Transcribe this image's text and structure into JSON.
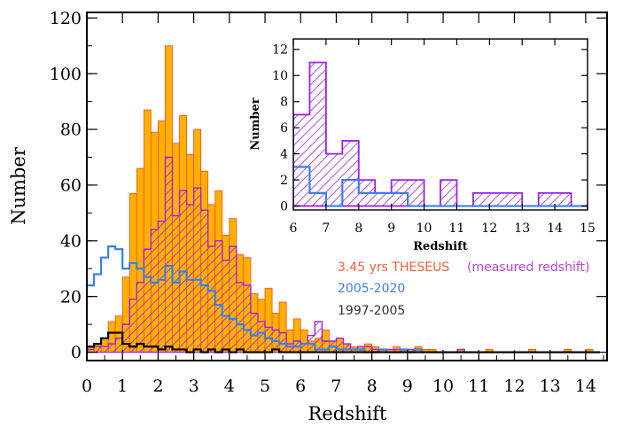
{
  "chart_data": [
    {
      "type": "histogram",
      "bin_width": 0.2,
      "xlabel": "Redshift",
      "ylabel": "Number",
      "xlim": [
        0,
        14.6
      ],
      "ylim": [
        -3,
        122
      ],
      "xticks": [
        0,
        1,
        2,
        3,
        4,
        5,
        6,
        7,
        8,
        9,
        10,
        11,
        12,
        13,
        14
      ],
      "yticks": [
        0,
        20,
        40,
        60,
        80,
        100,
        120
      ],
      "series": [
        {
          "name": "3.45 yrs THESEUS",
          "style": "filled",
          "color": "#ffb000",
          "edge": "#ff4a2a",
          "bin_starts": [
            0.0,
            0.2,
            0.4,
            0.6,
            0.8,
            1.0,
            1.2,
            1.4,
            1.6,
            1.8,
            2.0,
            2.2,
            2.4,
            2.6,
            2.8,
            3.0,
            3.2,
            3.4,
            3.6,
            3.8,
            4.0,
            4.2,
            4.4,
            4.6,
            4.8,
            5.0,
            5.2,
            5.4,
            5.6,
            5.8,
            6.0,
            6.2,
            6.4,
            6.6,
            6.8,
            7.0,
            7.2,
            7.4,
            7.6,
            7.8,
            8.0,
            8.2,
            8.4,
            8.6,
            8.8,
            9.0,
            9.2,
            9.4,
            9.6,
            9.8,
            10.0,
            10.2,
            10.4,
            10.6,
            10.8,
            11.0,
            11.2,
            11.4,
            11.6,
            11.8,
            12.0,
            12.2,
            12.4,
            12.6,
            12.8,
            13.0,
            13.2,
            13.4,
            13.6,
            13.8,
            14.0,
            14.2
          ],
          "values": [
            2,
            3,
            5,
            11,
            13,
            27,
            57,
            66,
            87,
            79,
            83,
            110,
            75,
            85,
            71,
            80,
            65,
            53,
            58,
            42,
            48,
            35,
            34,
            21,
            19,
            23,
            14,
            18,
            8,
            12,
            8,
            4,
            5,
            8,
            4,
            5,
            3,
            2,
            2,
            3,
            2,
            1,
            1,
            2,
            1,
            1,
            2,
            1,
            1,
            0,
            0,
            0,
            1,
            0,
            0,
            0,
            1,
            0,
            0,
            0,
            0,
            0,
            1,
            0,
            0,
            0,
            0,
            1,
            0,
            0,
            1,
            0
          ]
        },
        {
          "name": "(measured redshift)",
          "style": "hatched",
          "color": "#a020f0",
          "bin_starts": [
            0.0,
            0.2,
            0.4,
            0.6,
            0.8,
            1.0,
            1.2,
            1.4,
            1.6,
            1.8,
            2.0,
            2.2,
            2.4,
            2.6,
            2.8,
            3.0,
            3.2,
            3.4,
            3.6,
            3.8,
            4.0,
            4.2,
            4.4,
            4.6,
            4.8,
            5.0,
            5.2,
            5.4,
            5.6,
            5.8,
            6.0,
            6.2,
            6.4,
            6.6,
            6.8,
            7.0,
            7.2,
            7.4,
            7.6,
            7.8,
            8.0,
            8.2,
            8.4,
            8.6,
            8.8,
            9.0,
            9.2,
            9.4,
            9.6,
            9.8,
            10.0,
            10.2,
            10.4,
            10.6,
            10.8,
            11.0,
            11.2,
            11.4,
            11.6,
            11.8,
            12.0,
            12.2,
            12.4,
            12.6,
            12.8,
            13.0,
            13.2,
            13.4,
            13.6,
            13.8,
            14.0,
            14.2
          ],
          "values": [
            1,
            2,
            2,
            3,
            5,
            10,
            19,
            25,
            37,
            44,
            47,
            70,
            49,
            58,
            53,
            59,
            51,
            38,
            40,
            33,
            38,
            25,
            24,
            14,
            11,
            9,
            8,
            7,
            3,
            4,
            3,
            6,
            11,
            4,
            4,
            5,
            3,
            1,
            2,
            2,
            1,
            1,
            1,
            1,
            1,
            1,
            0,
            0,
            0,
            0,
            0,
            0,
            1,
            0,
            0,
            0,
            0,
            0,
            0,
            0,
            0,
            0,
            0,
            0,
            0,
            0,
            0,
            0,
            0,
            0,
            0,
            0
          ]
        },
        {
          "name": "2005-2020",
          "style": "step",
          "color": "#3a7ff0",
          "bin_starts": [
            0.0,
            0.2,
            0.4,
            0.6,
            0.8,
            1.0,
            1.2,
            1.4,
            1.6,
            1.8,
            2.0,
            2.2,
            2.4,
            2.6,
            2.8,
            3.0,
            3.2,
            3.4,
            3.6,
            3.8,
            4.0,
            4.2,
            4.4,
            4.6,
            4.8,
            5.0,
            5.2,
            5.4,
            5.6,
            5.8,
            6.0,
            6.2,
            6.4,
            6.6,
            6.8,
            7.0,
            7.2,
            7.4,
            7.6,
            7.8,
            8.0,
            8.2,
            8.4,
            8.6,
            8.8,
            9.0,
            9.2,
            9.4,
            9.6,
            9.8,
            10.0,
            10.2,
            10.4,
            10.6,
            10.8,
            11.0,
            11.2,
            11.4,
            11.6,
            11.8,
            12.0,
            12.2,
            12.4,
            12.6,
            12.8,
            13.0,
            13.2,
            13.4,
            13.6,
            13.8,
            14.0,
            14.2
          ],
          "values": [
            24,
            28,
            34,
            38,
            37,
            30,
            32,
            30,
            27,
            25,
            26,
            31,
            25,
            29,
            26,
            26,
            24,
            22,
            17,
            13,
            12,
            10,
            8,
            6,
            7,
            5,
            4,
            3,
            2,
            2,
            3,
            3,
            1,
            1,
            2,
            1,
            1,
            1,
            1,
            0,
            0,
            1,
            0,
            0,
            1,
            0,
            1,
            0,
            0,
            0,
            0,
            0,
            0,
            0,
            0,
            0,
            0,
            0,
            0,
            0,
            0,
            0,
            0,
            0,
            0,
            0,
            0,
            0,
            0,
            0,
            0,
            0
          ]
        },
        {
          "name": "1997-2005",
          "style": "step",
          "color": "#000000",
          "bin_starts": [
            0.0,
            0.2,
            0.4,
            0.6,
            0.8,
            1.0,
            1.2,
            1.4,
            1.6,
            1.8,
            2.0,
            2.2,
            2.4,
            2.6,
            2.8,
            3.0,
            3.2,
            3.4,
            3.6,
            3.8,
            4.0,
            4.2,
            4.4,
            4.6,
            4.8,
            5.0,
            5.2,
            5.4,
            5.6,
            5.8,
            6.0,
            6.2,
            6.4,
            6.6,
            6.8,
            7.0,
            7.2,
            7.4,
            7.6,
            7.8,
            8.0,
            8.2,
            8.4,
            8.6,
            8.8,
            9.0,
            9.2,
            9.4,
            9.6,
            9.8,
            10.0,
            10.2,
            10.4,
            10.6,
            10.8,
            11.0,
            11.2,
            11.4,
            11.6,
            11.8,
            12.0,
            12.2,
            12.4,
            12.6,
            12.8,
            13.0,
            13.2,
            13.4,
            13.6,
            13.8,
            14.0,
            14.2
          ],
          "values": [
            2,
            3,
            5,
            7,
            7,
            3,
            2,
            3,
            2,
            2,
            1,
            2,
            1,
            1,
            0,
            1,
            0,
            1,
            0,
            1,
            0,
            1,
            0,
            0,
            0,
            0,
            1,
            0,
            0,
            0,
            0,
            0,
            0,
            0,
            0,
            0,
            0,
            0,
            0,
            0,
            0,
            0,
            0,
            0,
            0,
            0,
            0,
            0,
            0,
            0,
            0,
            0,
            0,
            0,
            0,
            0,
            0,
            0,
            0,
            0,
            0,
            0,
            0,
            0,
            0,
            0,
            0,
            0,
            0,
            0,
            0,
            0
          ]
        }
      ],
      "legend": [
        {
          "text": "3.45 yrs THESEUS",
          "color": "#ff5a3a"
        },
        {
          "text": "(measured redshift)",
          "color": "#c040e0"
        },
        {
          "text": "2005-2020",
          "color": "#3a7ff0"
        },
        {
          "text": "1997-2005",
          "color": "#333333"
        }
      ]
    },
    {
      "type": "histogram",
      "inset": true,
      "bin_width": 0.5,
      "xlabel": "Redshift",
      "ylabel": "Number",
      "xlim": [
        6,
        15
      ],
      "ylim": [
        -0.3,
        12.8
      ],
      "xticks": [
        6,
        7,
        8,
        9,
        10,
        11,
        12,
        13,
        14,
        15
      ],
      "yticks": [
        0,
        2,
        4,
        6,
        8,
        10,
        12
      ],
      "series": [
        {
          "name": "(measured redshift)",
          "style": "hatched",
          "color": "#a020f0",
          "bin_starts": [
            6.0,
            6.5,
            7.0,
            7.5,
            8.0,
            8.5,
            9.0,
            9.5,
            10.0,
            10.5,
            11.0,
            11.5,
            12.0,
            12.5,
            13.0,
            13.5,
            14.0,
            14.5
          ],
          "values": [
            7,
            11,
            4,
            5,
            2,
            1,
            2,
            2,
            0,
            2,
            0,
            1,
            1,
            1,
            0,
            1,
            1,
            0
          ]
        },
        {
          "name": "2005-2020",
          "style": "step",
          "color": "#3a7ff0",
          "bin_starts": [
            6.0,
            6.5,
            7.0,
            7.5,
            8.0,
            8.5,
            9.0,
            9.5,
            10.0,
            10.5,
            11.0,
            11.5,
            12.0,
            12.5,
            13.0,
            13.5,
            14.0,
            14.5
          ],
          "values": [
            3,
            1,
            0,
            2,
            1,
            1,
            1,
            0,
            0,
            0,
            0,
            0,
            0,
            0,
            0,
            0,
            0,
            0
          ]
        }
      ]
    }
  ]
}
